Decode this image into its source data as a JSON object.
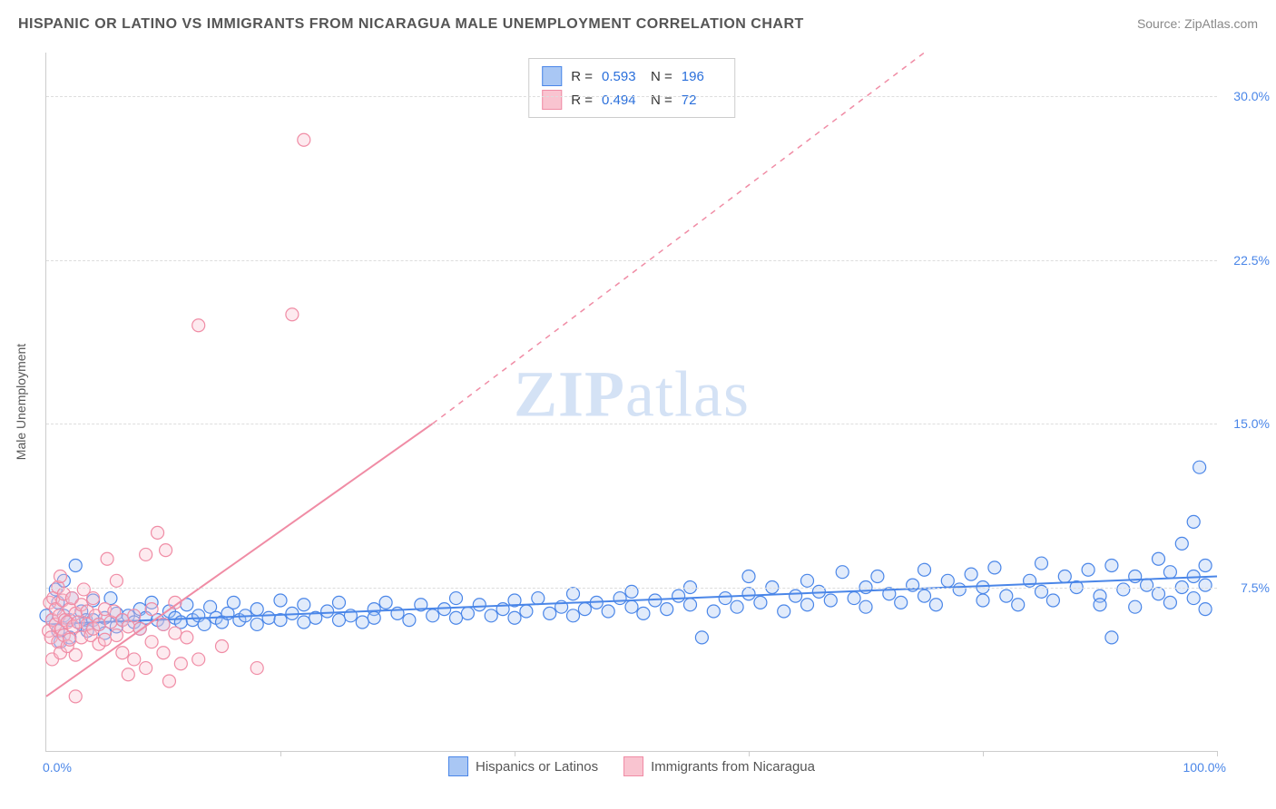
{
  "title": "HISPANIC OR LATINO VS IMMIGRANTS FROM NICARAGUA MALE UNEMPLOYMENT CORRELATION CHART",
  "source": "Source: ZipAtlas.com",
  "y_axis_title": "Male Unemployment",
  "watermark_bold": "ZIP",
  "watermark_rest": "atlas",
  "chart": {
    "type": "scatter",
    "xlim": [
      0,
      100
    ],
    "ylim": [
      0,
      32
    ],
    "x_tick_positions": [
      0,
      20,
      40,
      60,
      80,
      100
    ],
    "y_ticks": [
      7.5,
      15.0,
      22.5,
      30.0
    ],
    "y_tick_labels": [
      "7.5%",
      "15.0%",
      "22.5%",
      "30.0%"
    ],
    "x_min_label": "0.0%",
    "x_max_label": "100.0%",
    "background_color": "#ffffff",
    "grid_color": "#dddddd",
    "marker_radius": 7,
    "marker_stroke_width": 1.2,
    "marker_fill_opacity": 0.35,
    "line_width": 2,
    "series": [
      {
        "id": "hisp",
        "label": "Hispanics or Latinos",
        "color_stroke": "#4a86e8",
        "color_fill": "#a9c7f4",
        "R": "0.593",
        "N": "196",
        "trend": {
          "x1": 0,
          "y1": 5.8,
          "x2": 100,
          "y2": 8.0,
          "dashed": false
        },
        "points": [
          [
            0,
            6.2
          ],
          [
            0.5,
            6.0
          ],
          [
            0.8,
            7.4
          ],
          [
            1,
            5.5
          ],
          [
            1,
            6.8
          ],
          [
            1.2,
            5.0
          ],
          [
            1.5,
            6.2
          ],
          [
            1.5,
            7.8
          ],
          [
            2,
            6.0
          ],
          [
            2,
            5.2
          ],
          [
            2.2,
            7.0
          ],
          [
            2.5,
            8.5
          ],
          [
            3,
            5.8
          ],
          [
            3,
            6.4
          ],
          [
            3.4,
            6.0
          ],
          [
            3.5,
            5.5
          ],
          [
            4,
            6.0
          ],
          [
            4,
            6.9
          ],
          [
            4.5,
            5.8
          ],
          [
            5,
            6.1
          ],
          [
            5,
            5.4
          ],
          [
            5.5,
            7.0
          ],
          [
            6,
            6.3
          ],
          [
            6,
            5.7
          ],
          [
            6.5,
            6.0
          ],
          [
            7,
            6.2
          ],
          [
            7.5,
            5.9
          ],
          [
            8,
            6.5
          ],
          [
            8,
            5.6
          ],
          [
            8.5,
            6.1
          ],
          [
            9,
            6.8
          ],
          [
            9.5,
            6.0
          ],
          [
            10,
            5.8
          ],
          [
            10.5,
            6.4
          ],
          [
            11,
            6.1
          ],
          [
            11.5,
            5.9
          ],
          [
            12,
            6.7
          ],
          [
            12.5,
            6.0
          ],
          [
            13,
            6.2
          ],
          [
            13.5,
            5.8
          ],
          [
            14,
            6.6
          ],
          [
            14.5,
            6.1
          ],
          [
            15,
            5.9
          ],
          [
            15.5,
            6.3
          ],
          [
            16,
            6.8
          ],
          [
            16.5,
            6.0
          ],
          [
            17,
            6.2
          ],
          [
            18,
            5.8
          ],
          [
            18,
            6.5
          ],
          [
            19,
            6.1
          ],
          [
            20,
            6.9
          ],
          [
            20,
            6.0
          ],
          [
            21,
            6.3
          ],
          [
            22,
            5.9
          ],
          [
            22,
            6.7
          ],
          [
            23,
            6.1
          ],
          [
            24,
            6.4
          ],
          [
            25,
            6.0
          ],
          [
            25,
            6.8
          ],
          [
            26,
            6.2
          ],
          [
            27,
            5.9
          ],
          [
            28,
            6.5
          ],
          [
            28,
            6.1
          ],
          [
            29,
            6.8
          ],
          [
            30,
            6.3
          ],
          [
            31,
            6.0
          ],
          [
            32,
            6.7
          ],
          [
            33,
            6.2
          ],
          [
            34,
            6.5
          ],
          [
            35,
            6.1
          ],
          [
            35,
            7.0
          ],
          [
            36,
            6.3
          ],
          [
            37,
            6.7
          ],
          [
            38,
            6.2
          ],
          [
            39,
            6.5
          ],
          [
            40,
            6.9
          ],
          [
            40,
            6.1
          ],
          [
            41,
            6.4
          ],
          [
            42,
            7.0
          ],
          [
            43,
            6.3
          ],
          [
            44,
            6.6
          ],
          [
            45,
            6.2
          ],
          [
            45,
            7.2
          ],
          [
            46,
            6.5
          ],
          [
            47,
            6.8
          ],
          [
            48,
            6.4
          ],
          [
            49,
            7.0
          ],
          [
            50,
            6.6
          ],
          [
            50,
            7.3
          ],
          [
            51,
            6.3
          ],
          [
            52,
            6.9
          ],
          [
            53,
            6.5
          ],
          [
            54,
            7.1
          ],
          [
            55,
            6.7
          ],
          [
            55,
            7.5
          ],
          [
            56,
            5.2
          ],
          [
            57,
            6.4
          ],
          [
            58,
            7.0
          ],
          [
            59,
            6.6
          ],
          [
            60,
            8.0
          ],
          [
            60,
            7.2
          ],
          [
            61,
            6.8
          ],
          [
            62,
            7.5
          ],
          [
            63,
            6.4
          ],
          [
            64,
            7.1
          ],
          [
            65,
            6.7
          ],
          [
            65,
            7.8
          ],
          [
            66,
            7.3
          ],
          [
            67,
            6.9
          ],
          [
            68,
            8.2
          ],
          [
            69,
            7.0
          ],
          [
            70,
            7.5
          ],
          [
            70,
            6.6
          ],
          [
            71,
            8.0
          ],
          [
            72,
            7.2
          ],
          [
            73,
            6.8
          ],
          [
            74,
            7.6
          ],
          [
            75,
            8.3
          ],
          [
            75,
            7.1
          ],
          [
            76,
            6.7
          ],
          [
            77,
            7.8
          ],
          [
            78,
            7.4
          ],
          [
            79,
            8.1
          ],
          [
            80,
            6.9
          ],
          [
            80,
            7.5
          ],
          [
            81,
            8.4
          ],
          [
            82,
            7.1
          ],
          [
            83,
            6.7
          ],
          [
            84,
            7.8
          ],
          [
            85,
            8.6
          ],
          [
            85,
            7.3
          ],
          [
            86,
            6.9
          ],
          [
            87,
            8.0
          ],
          [
            88,
            7.5
          ],
          [
            89,
            8.3
          ],
          [
            90,
            7.1
          ],
          [
            90,
            6.7
          ],
          [
            91,
            8.5
          ],
          [
            92,
            7.4
          ],
          [
            93,
            8.0
          ],
          [
            93,
            6.6
          ],
          [
            94,
            7.6
          ],
          [
            95,
            8.8
          ],
          [
            95,
            7.2
          ],
          [
            96,
            6.8
          ],
          [
            96,
            8.2
          ],
          [
            97,
            7.5
          ],
          [
            97,
            9.5
          ],
          [
            98,
            10.5
          ],
          [
            98,
            8.0
          ],
          [
            98,
            7.0
          ],
          [
            98.5,
            13.0
          ],
          [
            99,
            7.6
          ],
          [
            99,
            8.5
          ],
          [
            99,
            6.5
          ],
          [
            91,
            5.2
          ]
        ]
      },
      {
        "id": "nica",
        "label": "Immigrants from Nicaragua",
        "color_stroke": "#f08ca5",
        "color_fill": "#f9c4d0",
        "R": "0.494",
        "N": "72",
        "trend_solid": {
          "x1": 0,
          "y1": 2.5,
          "x2": 33,
          "y2": 15.0
        },
        "trend_dashed": {
          "x1": 33,
          "y1": 15.0,
          "x2": 75,
          "y2": 32.0
        },
        "points": [
          [
            0.2,
            5.5
          ],
          [
            0.3,
            6.8
          ],
          [
            0.4,
            5.2
          ],
          [
            0.5,
            6.0
          ],
          [
            0.5,
            4.2
          ],
          [
            0.6,
            7.0
          ],
          [
            0.8,
            5.8
          ],
          [
            0.8,
            6.5
          ],
          [
            1.0,
            5.0
          ],
          [
            1.0,
            7.5
          ],
          [
            1.1,
            6.2
          ],
          [
            1.2,
            4.5
          ],
          [
            1.2,
            8.0
          ],
          [
            1.3,
            5.6
          ],
          [
            1.4,
            6.9
          ],
          [
            1.5,
            5.3
          ],
          [
            1.5,
            7.2
          ],
          [
            1.6,
            6.0
          ],
          [
            1.8,
            4.8
          ],
          [
            1.8,
            5.9
          ],
          [
            2.0,
            6.5
          ],
          [
            2.0,
            5.1
          ],
          [
            2.2,
            7.0
          ],
          [
            2.3,
            5.7
          ],
          [
            2.5,
            6.3
          ],
          [
            2.5,
            4.4
          ],
          [
            2.7,
            5.9
          ],
          [
            3.0,
            6.7
          ],
          [
            3.0,
            5.2
          ],
          [
            3.2,
            7.4
          ],
          [
            3.5,
            5.8
          ],
          [
            3.5,
            6.4
          ],
          [
            3.8,
            5.3
          ],
          [
            4.0,
            7.0
          ],
          [
            4.0,
            5.6
          ],
          [
            4.2,
            6.2
          ],
          [
            4.5,
            4.9
          ],
          [
            4.5,
            5.8
          ],
          [
            5.0,
            6.5
          ],
          [
            5.0,
            5.1
          ],
          [
            5.2,
            8.8
          ],
          [
            5.5,
            5.9
          ],
          [
            5.8,
            6.4
          ],
          [
            6.0,
            5.3
          ],
          [
            6.0,
            7.8
          ],
          [
            6.5,
            6.0
          ],
          [
            6.5,
            4.5
          ],
          [
            7.0,
            5.7
          ],
          [
            7.0,
            3.5
          ],
          [
            7.5,
            6.2
          ],
          [
            7.5,
            4.2
          ],
          [
            8.0,
            5.6
          ],
          [
            8.5,
            3.8
          ],
          [
            9.0,
            5.0
          ],
          [
            9.0,
            6.5
          ],
          [
            9.5,
            10.0
          ],
          [
            10.0,
            4.5
          ],
          [
            10.0,
            5.8
          ],
          [
            10.5,
            3.2
          ],
          [
            11.0,
            5.4
          ],
          [
            11.0,
            6.8
          ],
          [
            11.5,
            4.0
          ],
          [
            12.0,
            5.2
          ],
          [
            13.0,
            4.2
          ],
          [
            15.0,
            4.8
          ],
          [
            18.0,
            3.8
          ],
          [
            10.2,
            9.2
          ],
          [
            13.0,
            19.5
          ],
          [
            21.0,
            20.0
          ],
          [
            22.0,
            28.0
          ],
          [
            8.5,
            9.0
          ],
          [
            2.5,
            2.5
          ]
        ]
      }
    ]
  },
  "stats_legend": {
    "R_label": "R  =",
    "N_label": "N  ="
  }
}
